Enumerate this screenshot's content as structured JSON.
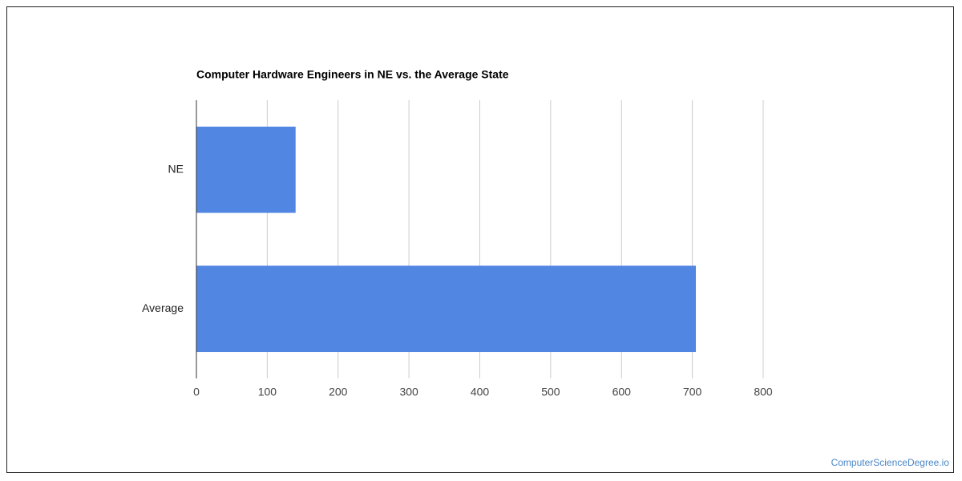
{
  "chart_data": {
    "type": "hbar",
    "title": "Computer Hardware Engineers in NE vs. the Average State",
    "categories": [
      "NE",
      "Average"
    ],
    "values": [
      140,
      705
    ],
    "color": "#5286e3",
    "xlim": [
      0,
      800
    ],
    "xticks": [
      0,
      100,
      200,
      300,
      400,
      500,
      600,
      700,
      800
    ],
    "grid": true,
    "watermark": "ComputerScienceDegree.io"
  }
}
